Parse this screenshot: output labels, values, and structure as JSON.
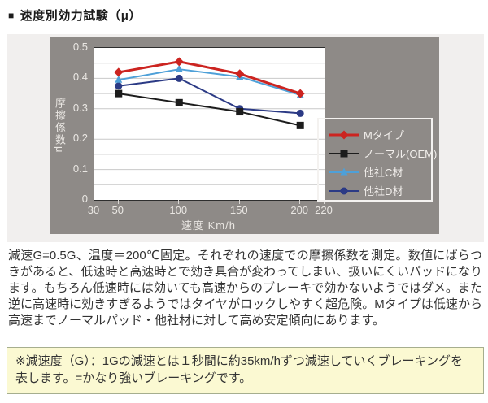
{
  "header": {
    "bullet": "■",
    "title": "速度別効力試験（μ）"
  },
  "chart_data": {
    "type": "line",
    "title": "",
    "xlabel": "速度 Km/h",
    "ylabel": "摩擦係数μ",
    "x": [
      50,
      100,
      150,
      200
    ],
    "series": [
      {
        "name": "Mタイプ",
        "color": "#cc2420",
        "marker": "diamond",
        "line_width": 3,
        "values": [
          0.42,
          0.455,
          0.415,
          0.35
        ]
      },
      {
        "name": "ノーマル(OEM)",
        "color": "#1c1c1c",
        "marker": "square",
        "line_width": 2,
        "values": [
          0.35,
          0.32,
          0.29,
          0.245
        ]
      },
      {
        "name": "他社C材",
        "color": "#4ea0d8",
        "marker": "triangle",
        "line_width": 2,
        "values": [
          0.395,
          0.43,
          0.405,
          0.345
        ]
      },
      {
        "name": "他社D材",
        "color": "#2b3a85",
        "marker": "circle",
        "line_width": 2,
        "values": [
          0.375,
          0.4,
          0.3,
          0.285
        ]
      }
    ],
    "xlim": [
      30,
      220
    ],
    "ylim": [
      0,
      0.5
    ],
    "x_ticks": [
      30,
      50,
      100,
      150,
      200,
      220
    ],
    "y_ticks": [
      0,
      0.1,
      0.2,
      0.3,
      0.4,
      0.5
    ],
    "grid": true,
    "grid_step": 0.05,
    "legend_position": "right-bottom",
    "colors": {
      "panel_bg": "#8e8a87",
      "band_bg": "#f1efee",
      "plot_bg": "#ffffff",
      "grid_line": "#c9c9c9",
      "axis_text": "#eae7e3",
      "legend_border": "#f4f2f0",
      "legend_text": "#f2efec"
    }
  },
  "description": "減速G=0.5G、温度＝200℃固定。それぞれの速度での摩擦係数を測定。数値にばらつきがあると、低速時と高速時とで効き具合が変わってしまい、扱いにくいパッドになります。もちろん低速時には効いても高速からのブレーキで効かないようではダメ。また逆に高速時に効きすぎるようではタイヤがロックしやすく超危険。Mタイプは低速から高速までノーマルパッド・他社材に対して高め安定傾向にあります。",
  "note": "※減速度（G）：1Gの減速とは１秒間に約35km/hずつ減速していくブレーキングを表します。=かなり強いブレーキングです。"
}
